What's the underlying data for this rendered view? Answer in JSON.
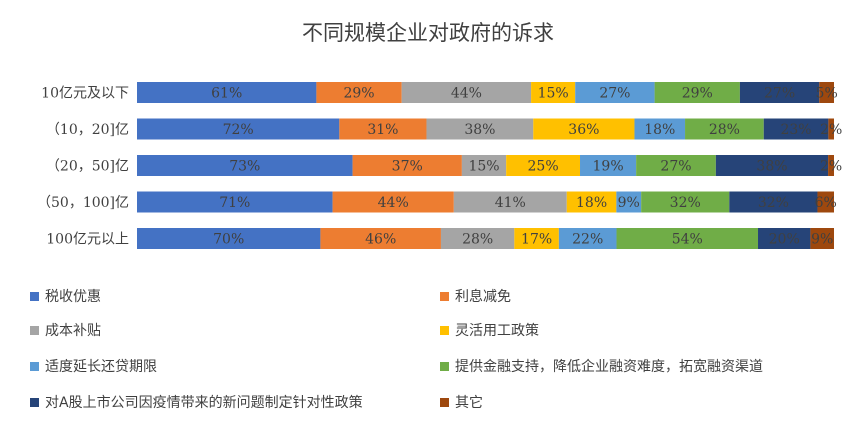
{
  "chart_data": {
    "type": "bar",
    "orientation": "horizontal",
    "stacked": true,
    "title": "不同规模企业对政府的诉求",
    "categories": [
      "10亿元及以下",
      "（10，20]亿",
      "（20，50]亿",
      "（50，100]亿",
      "100亿元以上"
    ],
    "series": [
      {
        "name": "税收优惠",
        "color": "#4472C4",
        "values": [
          61,
          72,
          73,
          71,
          70
        ]
      },
      {
        "name": "利息减免",
        "color": "#ED7D31",
        "values": [
          29,
          31,
          37,
          44,
          46
        ]
      },
      {
        "name": "成本补贴",
        "color": "#A5A5A5",
        "values": [
          44,
          38,
          15,
          41,
          28
        ]
      },
      {
        "name": "灵活用工政策",
        "color": "#FFC000",
        "values": [
          15,
          36,
          25,
          18,
          17
        ]
      },
      {
        "name": "适度延长还贷期限",
        "color": "#5B9BD5",
        "values": [
          27,
          18,
          19,
          9,
          22
        ]
      },
      {
        "name": "提供金融支持，降低企业融资难度，拓宽融资渠道",
        "color": "#70AD47",
        "values": [
          29,
          28,
          27,
          32,
          54
        ]
      },
      {
        "name": "对A股上市公司因疫情带来的新问题制定针对性政策",
        "color": "#264478",
        "values": [
          27,
          23,
          38,
          32,
          20
        ]
      },
      {
        "name": "其它",
        "color": "#9E480E",
        "values": [
          5,
          2,
          2,
          6,
          9
        ]
      }
    ],
    "value_suffix": "%",
    "grid": false,
    "legend_position": "bottom"
  }
}
